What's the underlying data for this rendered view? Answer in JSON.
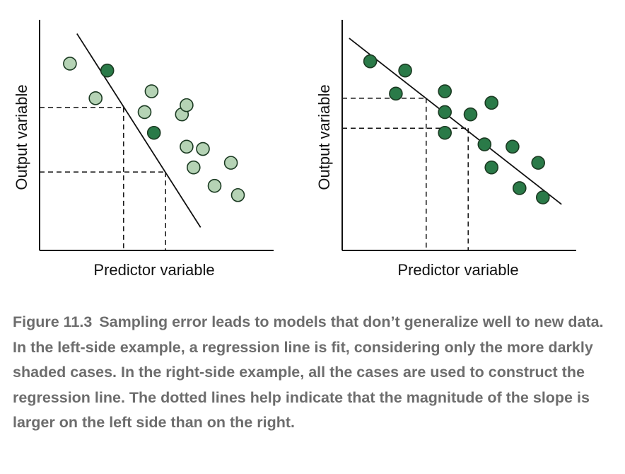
{
  "figure": {
    "panels": [
      {
        "name": "left",
        "xlabel": "Predictor variable",
        "ylabel": "Output variable",
        "points": [
          {
            "x": 1.3,
            "y": 8.1,
            "shade": "light"
          },
          {
            "x": 2.4,
            "y": 6.6,
            "shade": "light"
          },
          {
            "x": 2.9,
            "y": 7.8,
            "shade": "dark"
          },
          {
            "x": 4.5,
            "y": 6.0,
            "shade": "light"
          },
          {
            "x": 4.8,
            "y": 6.9,
            "shade": "light"
          },
          {
            "x": 4.9,
            "y": 5.1,
            "shade": "dark"
          },
          {
            "x": 6.1,
            "y": 5.9,
            "shade": "light"
          },
          {
            "x": 6.3,
            "y": 4.5,
            "shade": "light"
          },
          {
            "x": 6.6,
            "y": 3.6,
            "shade": "light"
          },
          {
            "x": 6.3,
            "y": 6.3,
            "shade": "light"
          },
          {
            "x": 7.0,
            "y": 4.4,
            "shade": "light"
          },
          {
            "x": 7.5,
            "y": 2.8,
            "shade": "light"
          },
          {
            "x": 8.2,
            "y": 3.8,
            "shade": "light"
          },
          {
            "x": 8.5,
            "y": 2.4,
            "shade": "light"
          }
        ],
        "line": [
          [
            1.6,
            9.4
          ],
          [
            6.9,
            1.0
          ]
        ],
        "guides": {
          "x": [
            3.6,
            5.4
          ],
          "y": [
            6.2,
            3.4
          ]
        }
      },
      {
        "name": "right",
        "xlabel": "Predictor variable",
        "ylabel": "Output variable",
        "points": [
          {
            "x": 1.2,
            "y": 8.2,
            "shade": "dark"
          },
          {
            "x": 2.7,
            "y": 7.8,
            "shade": "dark"
          },
          {
            "x": 2.3,
            "y": 6.8,
            "shade": "dark"
          },
          {
            "x": 4.4,
            "y": 6.0,
            "shade": "dark"
          },
          {
            "x": 4.4,
            "y": 6.9,
            "shade": "dark"
          },
          {
            "x": 4.4,
            "y": 5.1,
            "shade": "dark"
          },
          {
            "x": 5.5,
            "y": 5.9,
            "shade": "dark"
          },
          {
            "x": 6.1,
            "y": 4.6,
            "shade": "dark"
          },
          {
            "x": 6.4,
            "y": 3.6,
            "shade": "dark"
          },
          {
            "x": 6.4,
            "y": 6.4,
            "shade": "dark"
          },
          {
            "x": 7.3,
            "y": 4.5,
            "shade": "dark"
          },
          {
            "x": 7.6,
            "y": 2.7,
            "shade": "dark"
          },
          {
            "x": 8.4,
            "y": 3.8,
            "shade": "dark"
          },
          {
            "x": 8.6,
            "y": 2.3,
            "shade": "dark"
          }
        ],
        "line": [
          [
            0.3,
            9.2
          ],
          [
            9.4,
            2.0
          ]
        ],
        "guides": {
          "x": [
            3.6,
            5.4
          ],
          "y": [
            6.6,
            5.3
          ]
        }
      }
    ],
    "colors": {
      "dark_fill": "#2a7a48",
      "light_fill": "#b5d3b5",
      "point_stroke": "#1b3a22",
      "axis": "#111111"
    }
  },
  "caption": {
    "figure_number": "Figure 11.3",
    "text": "Sampling error leads to models that don’t generalize well to new data. In the left-side example, a regression line is fit, considering only the more darkly shaded cases. In the right-side example, all the cases are used to construct the regression line. The dotted lines help indicate that the magnitude of the slope is larger on the left side than on the right."
  }
}
